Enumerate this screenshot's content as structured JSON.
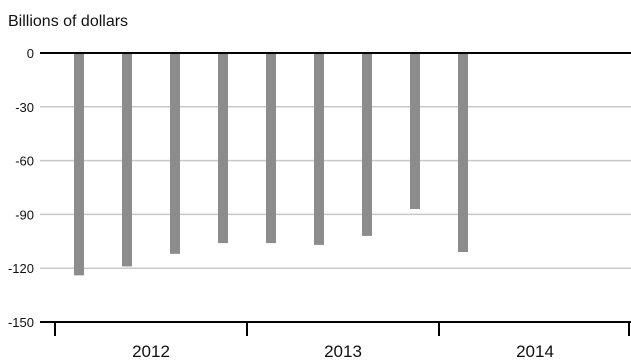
{
  "chart_data": {
    "type": "bar",
    "ylabel": "Billions of dollars",
    "ylim": [
      -150,
      0
    ],
    "yticks": [
      "0",
      "-30",
      "-60",
      "-90",
      "-120",
      "-150"
    ],
    "year_labels": [
      "2012",
      "2013",
      "2014"
    ],
    "categories": [
      "2012 Q1",
      "2012 Q2",
      "2012 Q3",
      "2012 Q4",
      "2013 Q1",
      "2013 Q2",
      "2013 Q3",
      "2013 Q4",
      "2014 Q1",
      "2014 Q2",
      "2014 Q3",
      "2014 Q4"
    ],
    "values": [
      -124,
      -119,
      -112,
      -106,
      -106,
      -107,
      -102,
      -87,
      -111,
      null,
      null,
      null
    ],
    "grid": true,
    "colors": {
      "bar": "#8c8c8c",
      "grid": "#c8c8c8",
      "axis": "#000000"
    }
  }
}
